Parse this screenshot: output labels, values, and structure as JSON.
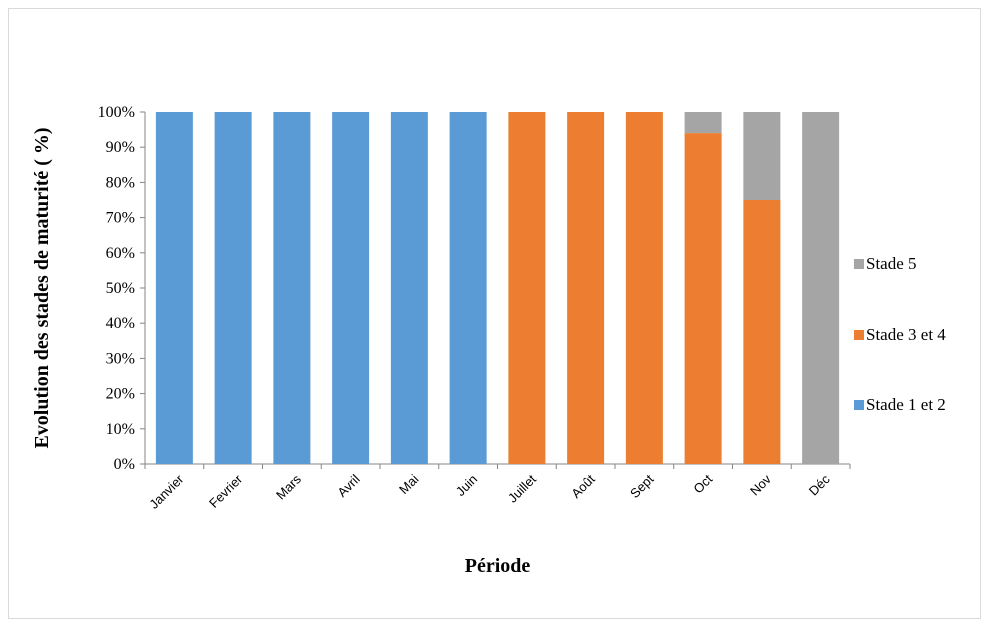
{
  "chart_data": {
    "type": "bar",
    "stacked": true,
    "percent": true,
    "categories": [
      "Janvier",
      "Fevrier",
      "Mars",
      "Avril",
      "Mai",
      "Juin",
      "Juillet",
      "Août",
      "Sept",
      "Oct",
      "Nov",
      "Déc"
    ],
    "series": [
      {
        "name": "Stade 1  et 2",
        "color": "#5b9bd5",
        "values": [
          100,
          100,
          100,
          100,
          100,
          100,
          0,
          0,
          0,
          0,
          0,
          0
        ]
      },
      {
        "name": "Stade 3  et 4",
        "color": "#ed7d31",
        "values": [
          0,
          0,
          0,
          0,
          0,
          0,
          100,
          100,
          100,
          94,
          75,
          0
        ]
      },
      {
        "name": "Stade 5",
        "color": "#a5a5a5",
        "values": [
          0,
          0,
          0,
          0,
          0,
          0,
          0,
          0,
          0,
          6,
          25,
          100
        ]
      }
    ],
    "yticks": [
      "0%",
      "10%",
      "20%",
      "30%",
      "40%",
      "50%",
      "60%",
      "70%",
      "80%",
      "90%",
      "100%"
    ],
    "ylim": [
      0,
      100
    ],
    "xlabel": "Période",
    "ylabel": "Evolution des stades de maturité ( %)",
    "legend_position": "right",
    "legend_order": [
      "Stade 5",
      "Stade 3  et 4",
      "Stade 1  et 2"
    ],
    "grid": false
  }
}
